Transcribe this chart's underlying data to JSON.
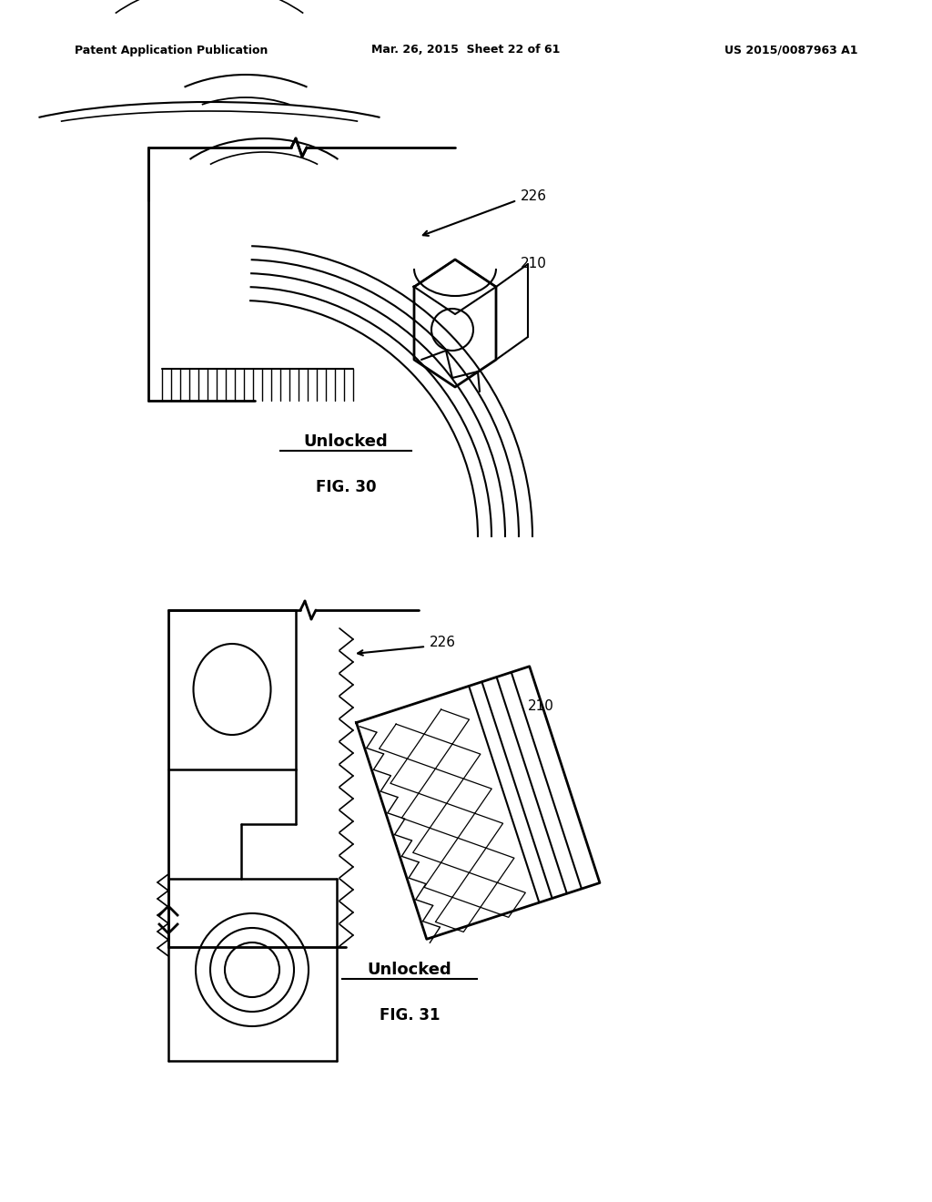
{
  "background_color": "#ffffff",
  "page_width": 10.24,
  "page_height": 13.2,
  "header": {
    "left": "Patent Application Publication",
    "center": "Mar. 26, 2015  Sheet 22 of 61",
    "right": "US 2015/0087963 A1",
    "fontsize": 9
  },
  "line_color": "#000000",
  "line_width": 1.5
}
